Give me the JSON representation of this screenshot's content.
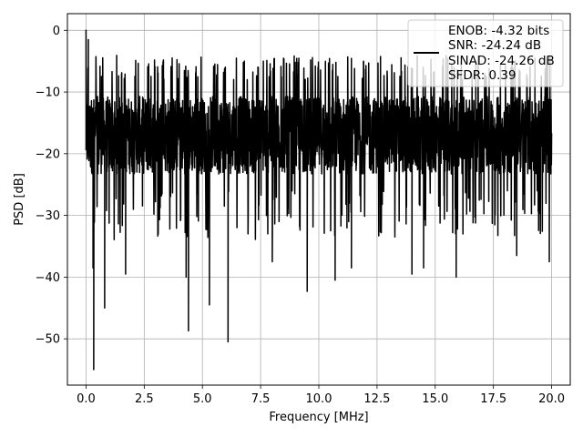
{
  "chart_data": {
    "type": "line",
    "title": "",
    "xlabel": "Frequency [MHz]",
    "ylabel": "PSD [dB]",
    "xlim": [
      -0.8,
      20.8
    ],
    "ylim": [
      -57.5,
      2.7
    ],
    "xticks": [
      0.0,
      2.5,
      5.0,
      7.5,
      10.0,
      12.5,
      15.0,
      17.5,
      20.0
    ],
    "xtick_labels": [
      "0.0",
      "2.5",
      "5.0",
      "7.5",
      "10.0",
      "12.5",
      "15.0",
      "17.5",
      "20.0"
    ],
    "yticks": [
      0,
      -10,
      -20,
      -30,
      -40,
      -50
    ],
    "ytick_labels": [
      "0",
      "−10",
      "−20",
      "−30",
      "−40",
      "−50"
    ],
    "grid": true,
    "legend_position": "top-right",
    "legend": [
      "ENOB: -4.32 bits",
      "SNR: -24.24 dB",
      "SINAD: -24.26 dB",
      "SFDR: 0.39"
    ],
    "series": [
      {
        "color": "#000000",
        "x_range": [
          0.0,
          20.0
        ],
        "noise_band_db": [
          -26,
          -8
        ],
        "peaks": [
          {
            "x": 0.0,
            "y": 0.0
          },
          {
            "x": 0.1,
            "y": -20.0
          },
          {
            "x": 0.1,
            "y": -1.5
          }
        ],
        "dips": [
          {
            "x": 0.33,
            "y": -55.0
          },
          {
            "x": 0.3,
            "y": -38.5
          },
          {
            "x": 0.8,
            "y": -45.0
          },
          {
            "x": 1.7,
            "y": -39.5
          },
          {
            "x": 4.3,
            "y": -40.0
          },
          {
            "x": 4.4,
            "y": -48.7
          },
          {
            "x": 5.3,
            "y": -44.5
          },
          {
            "x": 6.1,
            "y": -50.5
          },
          {
            "x": 8.0,
            "y": -37.5
          },
          {
            "x": 9.5,
            "y": -42.3
          },
          {
            "x": 10.7,
            "y": -40.5
          },
          {
            "x": 11.4,
            "y": -38.5
          },
          {
            "x": 14.0,
            "y": -39.5
          },
          {
            "x": 14.5,
            "y": -38.5
          },
          {
            "x": 15.9,
            "y": -40.0
          },
          {
            "x": 18.5,
            "y": -36.5
          },
          {
            "x": 19.9,
            "y": -37.5
          }
        ]
      }
    ]
  }
}
